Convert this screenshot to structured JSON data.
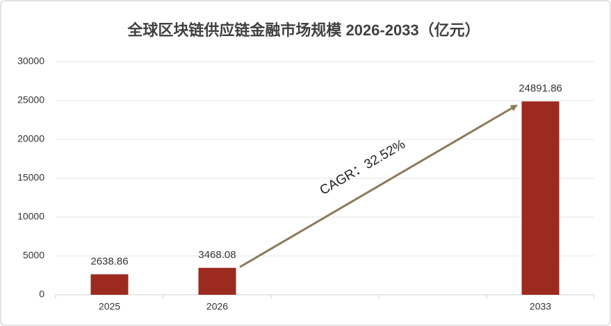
{
  "chart_data": {
    "type": "bar",
    "title": "全球区块链供应链金融市场规模 2026-2033（亿元）",
    "categories": [
      "2025",
      "2026",
      null,
      null,
      "2033"
    ],
    "values": [
      2638.86,
      3468.08,
      null,
      null,
      24891.86
    ],
    "color": "#9c2a1e",
    "ylim": [
      0,
      30000
    ],
    "yticks": [
      0,
      5000,
      10000,
      15000,
      20000,
      25000,
      30000
    ],
    "grid": true,
    "annotation": "CAGR：32.52%",
    "annotation_color": "#8a7a58"
  }
}
